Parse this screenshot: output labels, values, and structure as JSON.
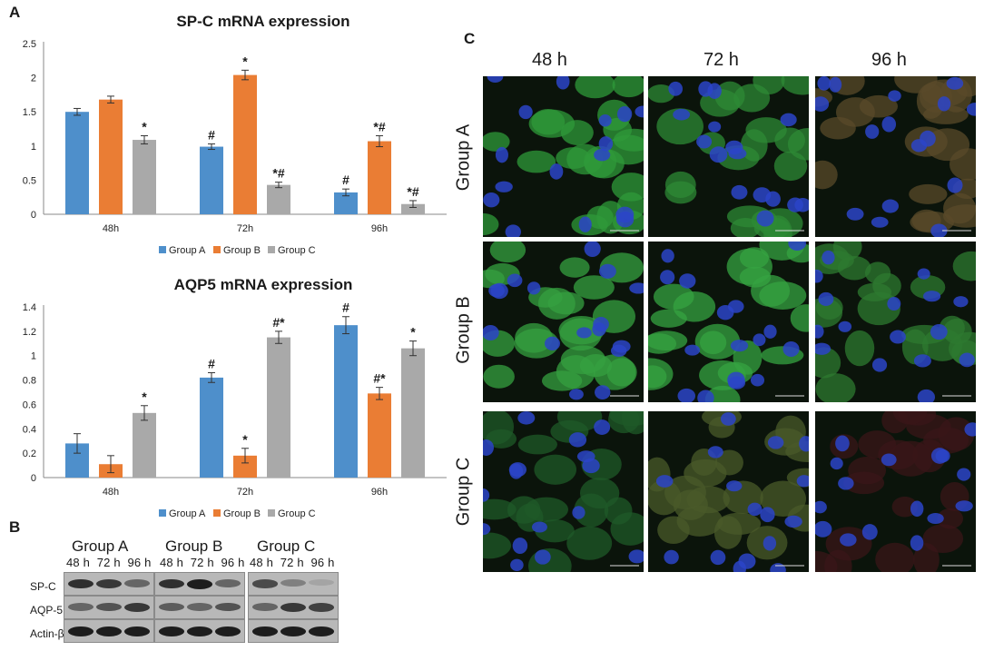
{
  "panels": {
    "a": "A",
    "b": "B",
    "c": "C"
  },
  "colors": {
    "group_a": "#4e8fcb",
    "group_b": "#ea7d34",
    "group_c": "#a9a9a9"
  },
  "chart_data": [
    {
      "type": "bar",
      "title": "SP-C mRNA expression",
      "categories": [
        "48h",
        "72h",
        "96h"
      ],
      "ylim": [
        0,
        2.5
      ],
      "yticks": [
        "0",
        "0.5",
        "1",
        "1.5",
        "2",
        "2.5"
      ],
      "ytick_values": [
        0,
        0.5,
        1,
        1.5,
        2,
        2.5
      ],
      "legend_position": "bottom",
      "series": [
        {
          "name": "Group A",
          "values": [
            1.5,
            0.99,
            0.32
          ],
          "errors": [
            0.05,
            0.04,
            0.05
          ],
          "annotations": [
            "",
            "#",
            "#"
          ]
        },
        {
          "name": "Group B",
          "values": [
            1.68,
            2.04,
            1.07
          ],
          "errors": [
            0.05,
            0.07,
            0.08
          ],
          "annotations": [
            "",
            "*",
            "*#"
          ]
        },
        {
          "name": "Group C",
          "values": [
            1.09,
            0.43,
            0.15
          ],
          "errors": [
            0.06,
            0.04,
            0.05
          ],
          "annotations": [
            "*",
            "*#",
            "*#"
          ]
        }
      ]
    },
    {
      "type": "bar",
      "title": "AQP5 mRNA expression",
      "categories": [
        "48h",
        "72h",
        "96h"
      ],
      "ylim": [
        0,
        1.4
      ],
      "yticks": [
        "0",
        "0.2",
        "0.4",
        "0.6",
        "0.8",
        "1",
        "1.2",
        "1.4"
      ],
      "ytick_values": [
        0,
        0.2,
        0.4,
        0.6,
        0.8,
        1.0,
        1.2,
        1.4
      ],
      "legend_position": "bottom",
      "series": [
        {
          "name": "Group A",
          "values": [
            0.28,
            0.82,
            1.25
          ],
          "errors": [
            0.08,
            0.04,
            0.07
          ],
          "annotations": [
            "",
            "#",
            "#"
          ]
        },
        {
          "name": "Group B",
          "values": [
            0.11,
            0.18,
            0.69
          ],
          "errors": [
            0.07,
            0.06,
            0.05
          ],
          "annotations": [
            "",
            "*",
            "#*"
          ]
        },
        {
          "name": "Group C",
          "values": [
            0.53,
            1.15,
            1.06
          ],
          "errors": [
            0.06,
            0.05,
            0.06
          ],
          "annotations": [
            "*",
            "#*",
            "*"
          ]
        }
      ]
    }
  ],
  "blot": {
    "groups": [
      "Group A",
      "Group B",
      "Group C"
    ],
    "times": [
      "48 h  72 h  96 h",
      "48 h  72 h  96 h",
      "48 h  72 h  96 h"
    ],
    "rows": [
      "SP-C",
      "AQP-5",
      "Actin-β"
    ],
    "band_intensity": [
      [
        [
          0.85,
          0.8,
          0.55
        ],
        [
          0.85,
          0.95,
          0.55
        ],
        [
          0.7,
          0.4,
          0.2
        ]
      ],
      [
        [
          0.55,
          0.65,
          0.8
        ],
        [
          0.6,
          0.55,
          0.65
        ],
        [
          0.55,
          0.8,
          0.75
        ]
      ],
      [
        [
          0.95,
          0.95,
          0.95
        ],
        [
          0.95,
          0.95,
          0.95
        ],
        [
          0.95,
          0.95,
          0.95
        ]
      ]
    ]
  },
  "micrographs": {
    "columns": [
      "48 h",
      "72 h",
      "96 h"
    ],
    "rows": [
      "Group A",
      "Group B",
      "Group C"
    ],
    "tile_colors": [
      [
        "#2f9a3a",
        "#2d8a36",
        "#5a4a2a"
      ],
      [
        "#35a040",
        "#36a342",
        "#2e7a30"
      ],
      [
        "#1f5a28",
        "#4a5a2a",
        "#3a1518"
      ]
    ]
  }
}
